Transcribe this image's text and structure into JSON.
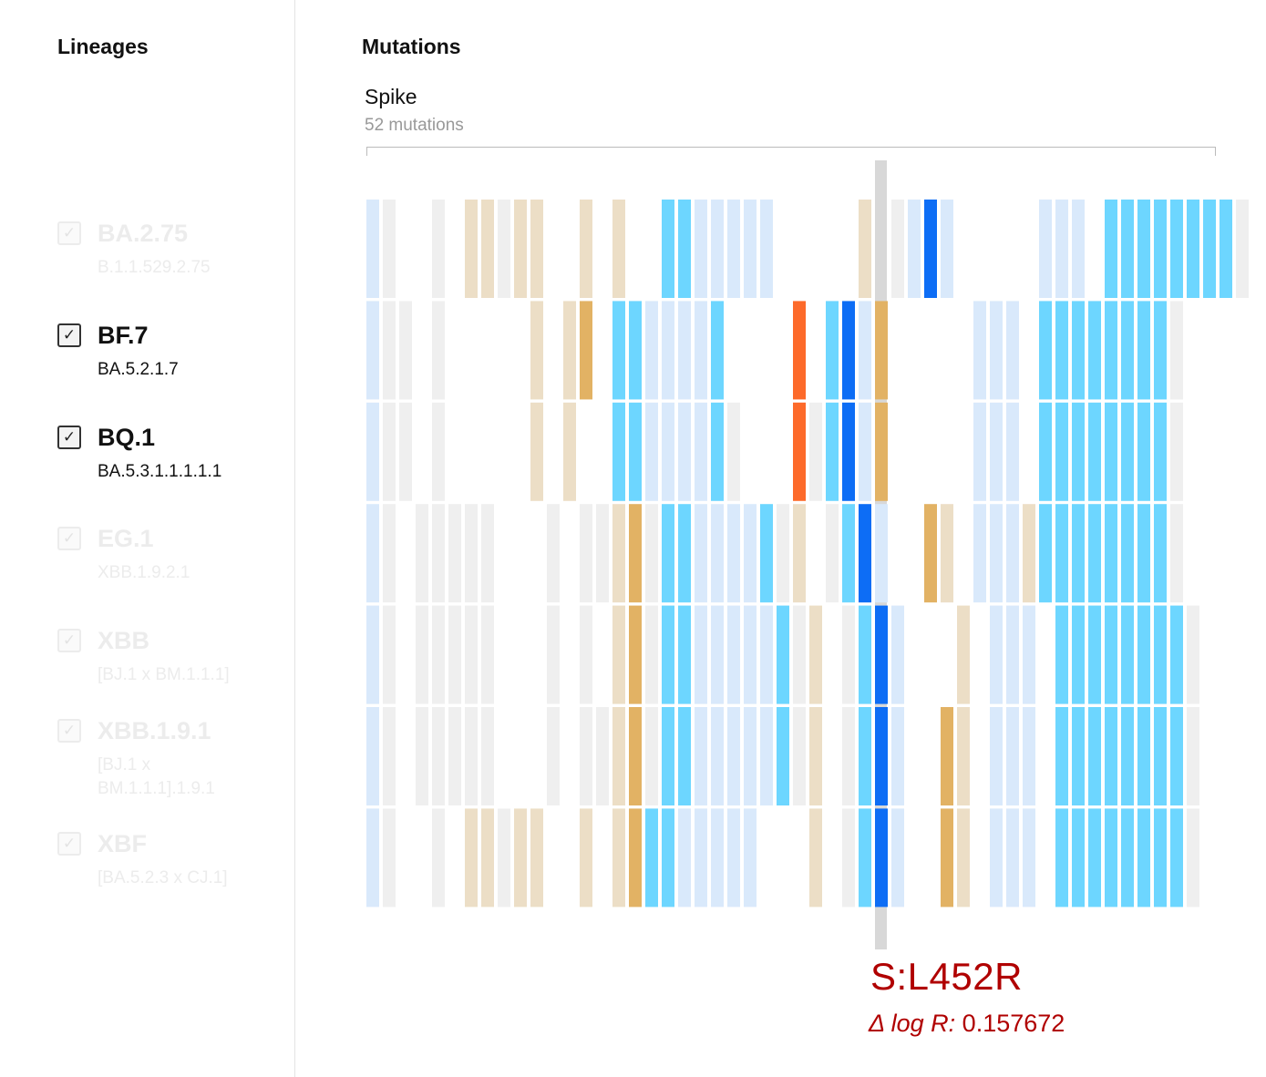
{
  "sidebar": {
    "title": "Lineages",
    "items": [
      {
        "name": "BA.2.75",
        "sub": "B.1.1.529.2.75",
        "selected": false
      },
      {
        "name": "BF.7",
        "sub": "BA.5.2.1.7",
        "selected": true
      },
      {
        "name": "BQ.1",
        "sub": "BA.5.3.1.1.1.1.1",
        "selected": true
      },
      {
        "name": "EG.1",
        "sub": "XBB.1.9.2.1",
        "selected": false
      },
      {
        "name": "XBB",
        "sub": "[BJ.1 x BM.1.1.1]",
        "selected": false
      },
      {
        "name": "XBB.1.9.1",
        "sub": "[BJ.1 x BM.1.1.1].1.9.1",
        "selected": false
      },
      {
        "name": "XBF",
        "sub": "[BA.5.2.3 x CJ.1]",
        "selected": false
      }
    ]
  },
  "mutations": {
    "title": "Mutations",
    "gene": "Spike",
    "count_label": "52 mutations",
    "checkbox_glyph": "✓",
    "colors": {
      "lightblue": "#d9e9fb",
      "cyan": "#6dd6ff",
      "blue": "#0d6df5",
      "gray": "#efefef",
      "tan": "#ecdec6",
      "gold": "#e2b264",
      "orange": "#fd6a2a",
      "red": "#d10a0a",
      "hover": "#d8d8d8"
    },
    "heatmap_rows": [
      "LG..G.TTGTT..T.T..CCLLLLL.....T.GLBL.....LLL.CCCCCCCCG",
      "LGG.G.....T.TO.CCLLLLC....R.CBLO.....LLL.CCCCCCCCG",
      "LGG.G.....T.T..CCLLLLCG...RGCBLO.....LLL.CCCCCCCCG",
      "LG.GGGGG...G.GGTOGCCLLLLCGT.GCBL..OT.LLLTCCCCCCCCG",
      "LG.GGGGG...G.G.TOGCCLLLLLCGT.GCBL...T.LLL.CCCCCCCCG",
      "LG.GGGGG...G.GGTOGCCLLLLLCGT.GCBL..OT.LLL.CCCCCCCCG",
      "LG..G.TTGTT..T.TOCCLLLLL...T.GCBL..OT.LLL.CCCCCCCCG"
    ],
    "tooltip": {
      "label": "S:L452R",
      "delta_label": "Δ log R:",
      "delta_value": "0.157672"
    }
  }
}
